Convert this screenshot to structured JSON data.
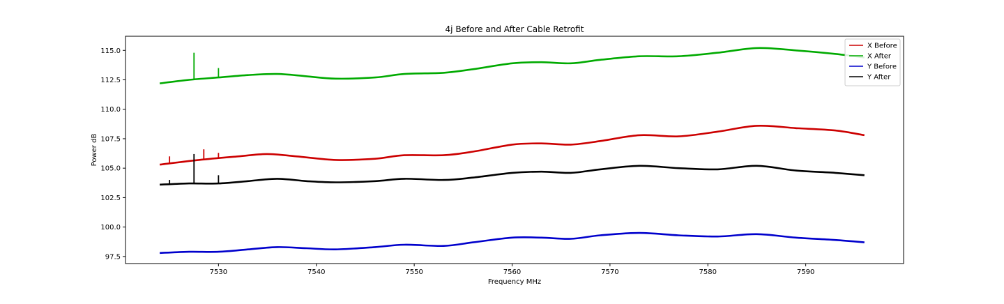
{
  "chart_data": {
    "type": "line",
    "title": "4j Before and After Cable Retrofit",
    "xlabel": "Frequency MHz",
    "ylabel": "Power dB",
    "xlim": [
      7520.5,
      7600.0
    ],
    "ylim": [
      96.9,
      116.2
    ],
    "xticks": [
      7530,
      7540,
      7550,
      7560,
      7570,
      7580,
      7590
    ],
    "yticks": [
      97.5,
      100.0,
      102.5,
      105.0,
      107.5,
      110.0,
      112.5,
      115.0
    ],
    "grid": false,
    "legend_position": "top-right",
    "series": [
      {
        "name": "X Before",
        "color": "#cc0000",
        "x": [
          7524,
          7528,
          7532,
          7535,
          7538,
          7542,
          7546,
          7549,
          7553,
          7556,
          7560,
          7563,
          7566,
          7569,
          7573,
          7577,
          7581,
          7585,
          7589,
          7593,
          7596
        ],
        "y": [
          105.3,
          105.7,
          106.0,
          106.2,
          106.0,
          105.7,
          105.8,
          106.1,
          106.1,
          106.4,
          107.0,
          107.1,
          107.0,
          107.3,
          107.8,
          107.7,
          108.1,
          108.6,
          108.4,
          108.2,
          107.8
        ],
        "spikes": [
          {
            "x": 7525,
            "y": 106.0
          },
          {
            "x": 7528.5,
            "y": 106.6
          },
          {
            "x": 7530,
            "y": 106.3
          }
        ]
      },
      {
        "name": "X After",
        "color": "#00aa00",
        "x": [
          7524,
          7527,
          7530,
          7533,
          7536,
          7539,
          7542,
          7546,
          7549,
          7553,
          7556,
          7560,
          7563,
          7566,
          7569,
          7573,
          7577,
          7581,
          7585,
          7589,
          7593,
          7596
        ],
        "y": [
          112.2,
          112.5,
          112.7,
          112.9,
          113.0,
          112.8,
          112.6,
          112.7,
          113.0,
          113.1,
          113.4,
          113.9,
          114.0,
          113.9,
          114.2,
          114.5,
          114.5,
          114.8,
          115.2,
          115.0,
          114.7,
          114.4
        ],
        "spikes": [
          {
            "x": 7527.5,
            "y": 114.8
          },
          {
            "x": 7530,
            "y": 113.5
          }
        ]
      },
      {
        "name": "Y Before",
        "color": "#0000cc",
        "x": [
          7524,
          7527,
          7530,
          7533,
          7536,
          7539,
          7542,
          7546,
          7549,
          7553,
          7556,
          7560,
          7563,
          7566,
          7569,
          7573,
          7577,
          7581,
          7585,
          7589,
          7593,
          7596
        ],
        "y": [
          97.8,
          97.9,
          97.9,
          98.1,
          98.3,
          98.2,
          98.1,
          98.3,
          98.5,
          98.4,
          98.7,
          99.1,
          99.1,
          99.0,
          99.3,
          99.5,
          99.3,
          99.2,
          99.4,
          99.1,
          98.9,
          98.7
        ],
        "spikes": []
      },
      {
        "name": "Y After",
        "color": "#000000",
        "x": [
          7524,
          7527,
          7530,
          7533,
          7536,
          7539,
          7542,
          7546,
          7549,
          7553,
          7556,
          7560,
          7563,
          7566,
          7569,
          7573,
          7577,
          7581,
          7585,
          7589,
          7593,
          7596
        ],
        "y": [
          103.6,
          103.7,
          103.7,
          103.9,
          104.1,
          103.9,
          103.8,
          103.9,
          104.1,
          104.0,
          104.2,
          104.6,
          104.7,
          104.6,
          104.9,
          105.2,
          105.0,
          104.9,
          105.2,
          104.8,
          104.6,
          104.4
        ],
        "spikes": [
          {
            "x": 7525,
            "y": 104.0
          },
          {
            "x": 7527.5,
            "y": 106.2
          },
          {
            "x": 7530,
            "y": 104.4
          }
        ]
      }
    ]
  }
}
